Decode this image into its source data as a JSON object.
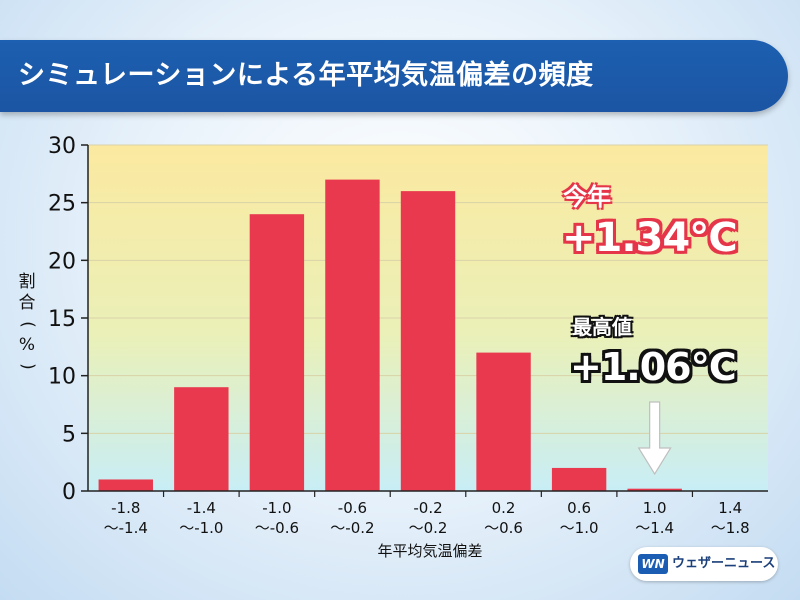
{
  "title": "シミュレーションによる年平均気温偏差の頻度",
  "chart_data": {
    "type": "bar",
    "categories": [
      [
        "-1.8",
        "～-1.4"
      ],
      [
        "-1.4",
        "～-1.0"
      ],
      [
        "-1.0",
        "～-0.6"
      ],
      [
        "-0.6",
        "～-0.2"
      ],
      [
        "-0.2",
        "～0.2"
      ],
      [
        "0.2",
        "～0.6"
      ],
      [
        "0.6",
        "～1.0"
      ],
      [
        "1.0",
        "～1.4"
      ],
      [
        "1.4",
        "～1.8"
      ]
    ],
    "values": [
      1,
      9,
      24,
      27,
      26,
      12,
      2,
      0.2,
      0
    ],
    "ylim": [
      0,
      30
    ],
    "yticks": [
      0,
      5,
      10,
      15,
      20,
      25,
      30
    ],
    "ylabel": "割合(%)",
    "xlabel": "年平均気温偏差",
    "bar_color": "#e8394f",
    "background_top": "#fbe9a0",
    "background_bottom": "#c8eef6",
    "annotations": {
      "this_year_label": "今年",
      "this_year_value": "+1.34℃",
      "max_label": "最高値",
      "max_value": "+1.06℃",
      "arrow_category_index": 7
    }
  },
  "ylabel_chars": [
    "割",
    "合",
    "(",
    "%",
    ")"
  ],
  "logo": {
    "mark": "WN",
    "text": "ウェザーニュース",
    "color": "#1b5db3"
  }
}
